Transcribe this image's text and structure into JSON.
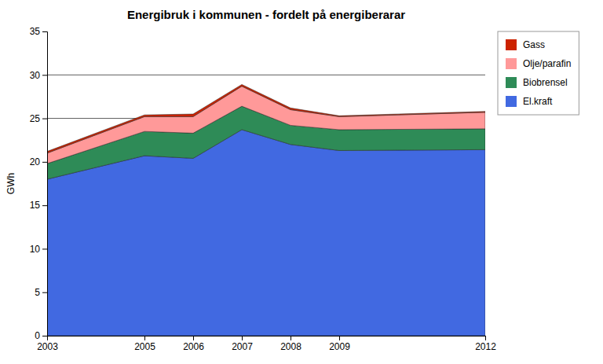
{
  "chart_data": {
    "type": "area",
    "stacked": true,
    "title": "Energibruk i kommunen - fordelt på energiberarar",
    "y_label": "GWh",
    "x": [
      2003,
      2005,
      2006,
      2007,
      2008,
      2009,
      2012
    ],
    "series": [
      {
        "name": "El.kraft",
        "color": "#4169E1",
        "values": [
          18.0,
          20.7,
          20.4,
          23.7,
          22.0,
          21.3,
          21.4
        ]
      },
      {
        "name": "Biobrensel",
        "color": "#2E8B57",
        "values": [
          1.8,
          2.8,
          2.9,
          2.7,
          2.2,
          2.4,
          2.4
        ]
      },
      {
        "name": "Olje/parafin",
        "color": "#FF9999",
        "values": [
          1.2,
          1.7,
          1.9,
          2.3,
          1.8,
          1.5,
          1.9
        ]
      },
      {
        "name": "Gass",
        "color": "#CC2200",
        "values": [
          0.2,
          0.2,
          0.3,
          0.2,
          0.2,
          0.1,
          0.1
        ]
      }
    ],
    "xlim": [
      2003,
      2012
    ],
    "xticks": [
      2003,
      2005,
      2006,
      2007,
      2008,
      2009,
      2012
    ],
    "ylim": [
      0,
      35
    ],
    "yticks": [
      0,
      5,
      10,
      15,
      20,
      25,
      30,
      35
    ],
    "hlines": [
      25,
      30
    ],
    "grid": false,
    "legend": "right"
  }
}
